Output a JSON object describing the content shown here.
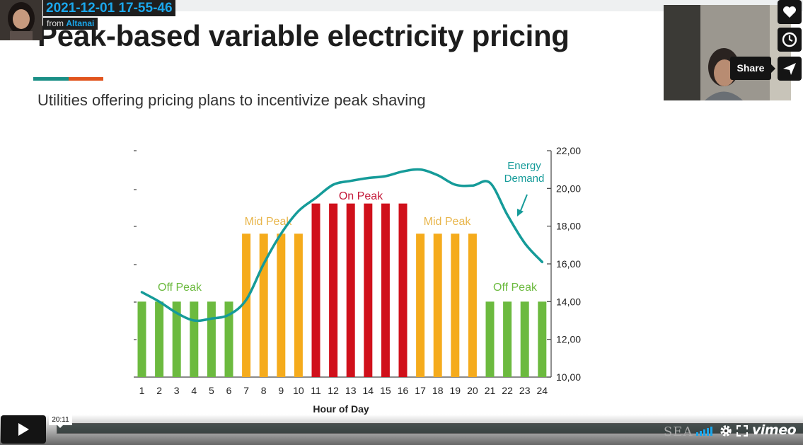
{
  "overlay": {
    "timestamp": "2021-12-01 17-55-46",
    "from_prefix": "from",
    "from_user": "Altanai"
  },
  "slide": {
    "title": "Peak-based variable electricity pricing",
    "subtitle": "Utilities offering pricing plans to incentivize peak shaving",
    "accent_colors": [
      "#1a8f86",
      "#e1541d"
    ]
  },
  "chart_data": {
    "type": "bar",
    "xlabel": "Hour of Day",
    "categories": [
      "1",
      "2",
      "3",
      "4",
      "5",
      "6",
      "7",
      "8",
      "9",
      "10",
      "11",
      "12",
      "13",
      "14",
      "15",
      "16",
      "17",
      "18",
      "19",
      "20",
      "21",
      "22",
      "23",
      "24"
    ],
    "series": [
      {
        "values": [
          14000,
          14000,
          14000,
          14000,
          14000,
          14000,
          17600,
          17600,
          17600,
          17600,
          19200,
          19200,
          19200,
          19200,
          19200,
          19200,
          17600,
          17600,
          17600,
          17600,
          14000,
          14000,
          14000,
          14000
        ],
        "period": [
          "Off Peak",
          "Off Peak",
          "Off Peak",
          "Off Peak",
          "Off Peak",
          "Off Peak",
          "Mid Peak",
          "Mid Peak",
          "Mid Peak",
          "Mid Peak",
          "On Peak",
          "On Peak",
          "On Peak",
          "On Peak",
          "On Peak",
          "On Peak",
          "Mid Peak",
          "Mid Peak",
          "Mid Peak",
          "Mid Peak",
          "Off Peak",
          "Off Peak",
          "Off Peak",
          "Off Peak"
        ]
      },
      {
        "name": "Energy Demand",
        "type": "line",
        "values": [
          14500,
          14000,
          13400,
          13000,
          13100,
          13300,
          14100,
          16000,
          17600,
          18800,
          19500,
          20200,
          20400,
          20550,
          20650,
          20900,
          21000,
          20700,
          20200,
          20150,
          20300,
          18600,
          17100,
          16100
        ]
      }
    ],
    "ylim": [
      10000,
      22000
    ],
    "right_axis_ticks": [
      "10,00",
      "12,00",
      "14,00",
      "16,00",
      "18,00",
      "20,00",
      "22,00"
    ],
    "period_labels": [
      "Off Peak",
      "Mid Peak",
      "On Peak",
      "Mid Peak",
      "Off Peak"
    ],
    "annotation": "Energy Demand",
    "colors": {
      "Off Peak": "#6cba3f",
      "Mid Peak": "#f5ab1c",
      "On Peak": "#d0101b",
      "demand": "#159b99",
      "off_label": "#6cba3f",
      "mid_label": "#e8b54a",
      "on_label": "#c41a3a"
    }
  },
  "player": {
    "current_time": "20:11",
    "brand": "vimeo",
    "share_label": "Share",
    "watermark": "SEA"
  },
  "icons": [
    "heart-icon",
    "clock-icon",
    "send-icon",
    "play-icon",
    "volume-icon",
    "gear-icon",
    "fullscreen-icon"
  ]
}
